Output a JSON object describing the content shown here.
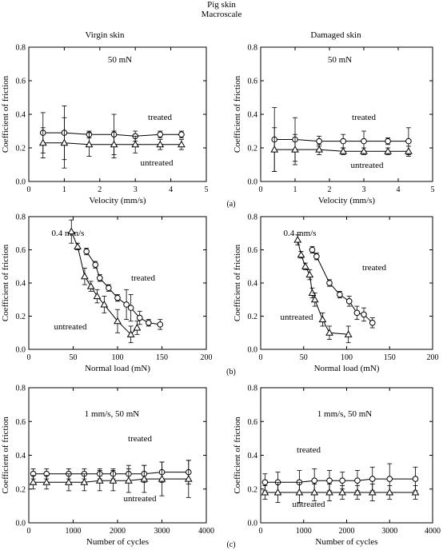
{
  "figure": {
    "title": "Pig skin",
    "subtitle": "Macroscale",
    "column_titles": [
      "Virgin skin",
      "Damaged skin"
    ],
    "row_tags": [
      "(a)",
      "(b)",
      "(c)"
    ]
  },
  "chart_data": [
    {
      "id": "a-virgin",
      "type": "scatter",
      "xlabel": "Velocity (mm/s)",
      "ylabel": "Coefficient of friction",
      "xlim": [
        0,
        5
      ],
      "ylim": [
        0,
        0.8
      ],
      "xticks": [
        0,
        1,
        2,
        3,
        4,
        5
      ],
      "yticks": [
        0,
        0.2,
        0.4,
        0.6,
        0.8
      ],
      "condition": "50 mN",
      "series": [
        {
          "name": "treated",
          "marker": "circle",
          "x": [
            0.4,
            1.0,
            1.7,
            2.4,
            3.0,
            3.7,
            4.3
          ],
          "y": [
            0.29,
            0.29,
            0.28,
            0.28,
            0.27,
            0.28,
            0.28
          ],
          "err": [
            0.12,
            0.16,
            0.02,
            0.12,
            0.03,
            0.02,
            0.02
          ]
        },
        {
          "name": "untreated",
          "marker": "triangle",
          "x": [
            0.4,
            1.0,
            1.7,
            2.4,
            3.0,
            3.7,
            4.3
          ],
          "y": [
            0.23,
            0.23,
            0.22,
            0.22,
            0.22,
            0.22,
            0.22
          ],
          "err": [
            0.09,
            0.15,
            0.07,
            0.08,
            0.05,
            0.03,
            0.03
          ]
        }
      ]
    },
    {
      "id": "a-damaged",
      "type": "scatter",
      "xlabel": "Velocity (mm/s)",
      "ylabel": "Coefficient of friction",
      "xlim": [
        0,
        5
      ],
      "ylim": [
        0,
        0.8
      ],
      "xticks": [
        0,
        1,
        2,
        3,
        4,
        5
      ],
      "yticks": [
        0,
        0.2,
        0.4,
        0.6,
        0.8
      ],
      "condition": "50 mN",
      "series": [
        {
          "name": "treated",
          "marker": "circle",
          "x": [
            0.4,
            1.0,
            1.7,
            2.4,
            3.0,
            3.7,
            4.3
          ],
          "y": [
            0.25,
            0.25,
            0.24,
            0.24,
            0.24,
            0.24,
            0.24
          ],
          "err": [
            0.19,
            0.13,
            0.03,
            0.04,
            0.06,
            0.02,
            0.08
          ]
        },
        {
          "name": "untreated",
          "marker": "triangle",
          "x": [
            0.4,
            1.0,
            1.7,
            2.4,
            3.0,
            3.7,
            4.3
          ],
          "y": [
            0.19,
            0.19,
            0.19,
            0.18,
            0.18,
            0.18,
            0.18
          ],
          "err": [
            0.13,
            0.09,
            0.03,
            0.02,
            0.02,
            0.02,
            0.03
          ]
        }
      ]
    },
    {
      "id": "b-virgin",
      "type": "line",
      "xlabel": "Normal load (mN)",
      "ylabel": "Coefficient of friction",
      "xlim": [
        0,
        200
      ],
      "ylim": [
        0,
        0.8
      ],
      "xticks": [
        0,
        50,
        100,
        150,
        200
      ],
      "yticks": [
        0,
        0.2,
        0.4,
        0.6,
        0.8
      ],
      "condition": "0.4 mm/s",
      "series": [
        {
          "name": "treated",
          "marker": "circle",
          "x": [
            65,
            75,
            80,
            90,
            100,
            110,
            115,
            125,
            135,
            148
          ],
          "y": [
            0.59,
            0.51,
            0.43,
            0.37,
            0.31,
            0.27,
            0.25,
            0.19,
            0.16,
            0.15
          ],
          "err": [
            0.02,
            0.02,
            0.02,
            0.02,
            0.02,
            0.09,
            0.08,
            0.04,
            0.02,
            0.03
          ]
        },
        {
          "name": "untreated",
          "marker": "triangle",
          "x": [
            48,
            55,
            63,
            70,
            77,
            85,
            100,
            115,
            122
          ],
          "y": [
            0.71,
            0.62,
            0.44,
            0.38,
            0.32,
            0.27,
            0.17,
            0.09,
            0.13
          ],
          "err": [
            0.07,
            0.02,
            0.05,
            0.03,
            0.04,
            0.05,
            0.07,
            0.05,
            0.04
          ]
        }
      ]
    },
    {
      "id": "b-damaged",
      "type": "line",
      "xlabel": "Normal load (mN)",
      "ylabel": "Coefficient of friction",
      "xlim": [
        0,
        200
      ],
      "ylim": [
        0,
        0.8
      ],
      "xticks": [
        0,
        50,
        100,
        150,
        200
      ],
      "yticks": [
        0,
        0.2,
        0.4,
        0.6,
        0.8
      ],
      "condition": "0.4 mm/s",
      "series": [
        {
          "name": "treated",
          "marker": "circle",
          "x": [
            60,
            65,
            80,
            92,
            103,
            112,
            120,
            130
          ],
          "y": [
            0.6,
            0.56,
            0.4,
            0.33,
            0.29,
            0.22,
            0.21,
            0.16
          ],
          "err": [
            0.02,
            0.02,
            0.02,
            0.02,
            0.03,
            0.04,
            0.04,
            0.03
          ]
        },
        {
          "name": "untreated",
          "marker": "triangle",
          "x": [
            43,
            47,
            52,
            57,
            60,
            63,
            72,
            80,
            102
          ],
          "y": [
            0.66,
            0.57,
            0.5,
            0.45,
            0.34,
            0.3,
            0.18,
            0.1,
            0.09
          ],
          "err": [
            0.03,
            0.02,
            0.02,
            0.03,
            0.03,
            0.04,
            0.04,
            0.04,
            0.05
          ]
        }
      ]
    },
    {
      "id": "c-virgin",
      "type": "scatter",
      "xlabel": "Number of cycles",
      "ylabel": "Coefficient of friction",
      "xlim": [
        0,
        4000
      ],
      "ylim": [
        0,
        0.8
      ],
      "xticks": [
        0,
        1000,
        2000,
        3000,
        4000
      ],
      "yticks": [
        0,
        0.2,
        0.4,
        0.6,
        0.8
      ],
      "condition": "1 mm/s, 50 mN",
      "series": [
        {
          "name": "treated",
          "marker": "circle",
          "x": [
            100,
            400,
            900,
            1250,
            1600,
            1900,
            2250,
            2600,
            3000,
            3600
          ],
          "y": [
            0.29,
            0.29,
            0.29,
            0.29,
            0.29,
            0.29,
            0.29,
            0.29,
            0.3,
            0.3
          ],
          "err": [
            0.03,
            0.03,
            0.03,
            0.03,
            0.03,
            0.03,
            0.05,
            0.05,
            0.06,
            0.07
          ]
        },
        {
          "name": "untreated",
          "marker": "triangle",
          "x": [
            100,
            400,
            900,
            1250,
            1600,
            1900,
            2250,
            2600,
            3000,
            3600
          ],
          "y": [
            0.24,
            0.24,
            0.24,
            0.24,
            0.25,
            0.25,
            0.25,
            0.26,
            0.26,
            0.26
          ],
          "err": [
            0.04,
            0.04,
            0.05,
            0.05,
            0.06,
            0.06,
            0.07,
            0.08,
            0.1,
            0.11
          ]
        }
      ]
    },
    {
      "id": "c-damaged",
      "type": "scatter",
      "xlabel": "Number of cycles",
      "ylabel": "Coefficient of friction",
      "xlim": [
        0,
        4000
      ],
      "ylim": [
        0,
        0.8
      ],
      "xticks": [
        0,
        1000,
        2000,
        3000,
        4000
      ],
      "yticks": [
        0,
        0.2,
        0.4,
        0.6,
        0.8
      ],
      "condition": "1 mm/s, 50 mN",
      "series": [
        {
          "name": "treated",
          "marker": "circle",
          "x": [
            100,
            400,
            900,
            1250,
            1600,
            1900,
            2250,
            2600,
            3000,
            3600
          ],
          "y": [
            0.24,
            0.24,
            0.24,
            0.25,
            0.25,
            0.25,
            0.25,
            0.26,
            0.26,
            0.26
          ],
          "err": [
            0.05,
            0.06,
            0.07,
            0.07,
            0.06,
            0.05,
            0.06,
            0.07,
            0.09,
            0.07
          ]
        },
        {
          "name": "untreated",
          "marker": "triangle",
          "x": [
            100,
            400,
            900,
            1250,
            1600,
            1900,
            2250,
            2600,
            3000,
            3600
          ],
          "y": [
            0.18,
            0.18,
            0.18,
            0.18,
            0.18,
            0.18,
            0.18,
            0.18,
            0.18,
            0.18
          ],
          "err": [
            0.04,
            0.06,
            0.06,
            0.05,
            0.05,
            0.04,
            0.04,
            0.05,
            0.04,
            0.04
          ]
        }
      ]
    }
  ]
}
